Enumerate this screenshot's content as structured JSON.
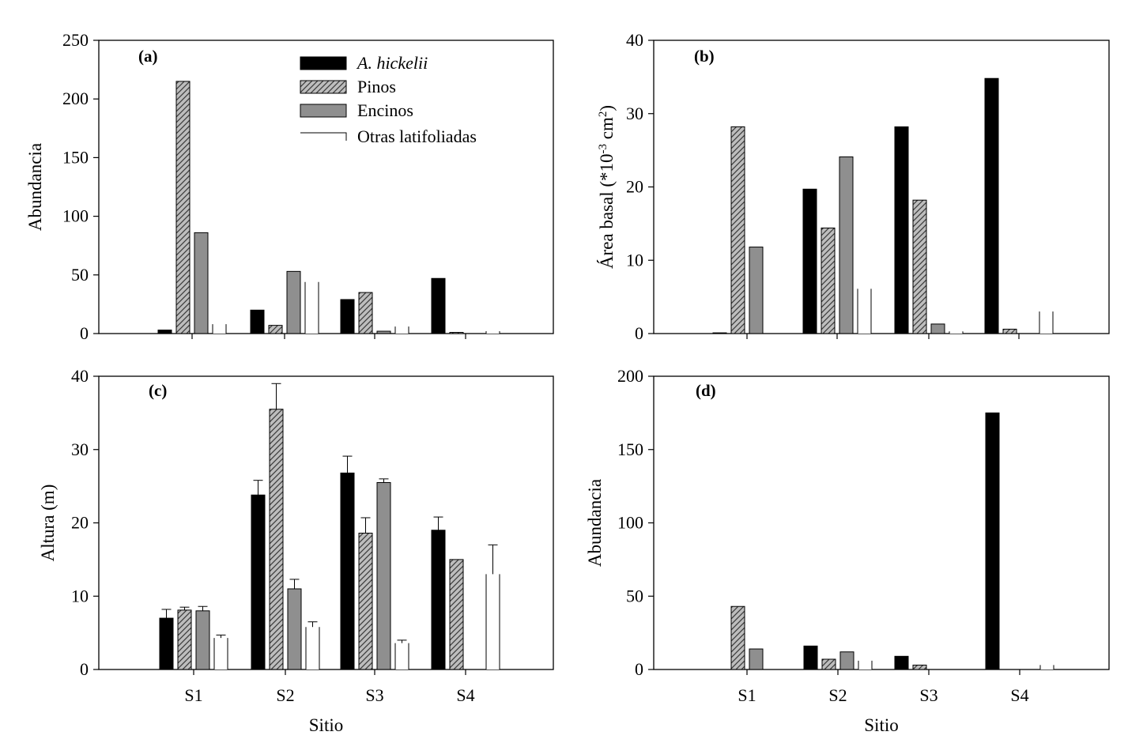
{
  "chart_data": [
    {
      "id": "a",
      "type": "bar",
      "panel_label": "(a)",
      "ylabel": "Abundancia",
      "xlabel": "",
      "ylim": [
        0,
        250
      ],
      "yticks": [
        0,
        50,
        100,
        150,
        200,
        250
      ],
      "categories": [
        "S1",
        "S2",
        "S3",
        "S4"
      ],
      "show_category_labels": false,
      "series": [
        {
          "name": "A. hickelii",
          "values": [
            3,
            20,
            29,
            47
          ]
        },
        {
          "name": "Pinos",
          "values": [
            215,
            7,
            35,
            1
          ]
        },
        {
          "name": "Encinos",
          "values": [
            86,
            53,
            2,
            0
          ]
        },
        {
          "name": "Otras latifoliadas",
          "values": [
            8,
            44,
            6,
            2
          ]
        }
      ]
    },
    {
      "id": "b",
      "type": "bar",
      "panel_label": "(b)",
      "ylabel": "Área basal (*10-3 cm2)",
      "ylabel_parts": [
        "Área basal (*10",
        "-3",
        " cm",
        "2",
        ")"
      ],
      "xlabel": "",
      "ylim": [
        0,
        40
      ],
      "yticks": [
        0,
        10,
        20,
        30,
        40
      ],
      "categories": [
        "S1",
        "S2",
        "S3",
        "S4"
      ],
      "show_category_labels": false,
      "series": [
        {
          "name": "A. hickelii",
          "values": [
            0.1,
            19.7,
            28.2,
            34.8
          ]
        },
        {
          "name": "Pinos",
          "values": [
            28.2,
            14.4,
            18.2,
            0.6
          ]
        },
        {
          "name": "Encinos",
          "values": [
            11.8,
            24.1,
            1.3,
            0
          ]
        },
        {
          "name": "Otras latifoliadas",
          "values": [
            0,
            6.1,
            0.3,
            3.0
          ]
        }
      ]
    },
    {
      "id": "c",
      "type": "bar",
      "panel_label": "(c)",
      "ylabel": "Altura (m)",
      "xlabel": "Sitio",
      "ylim": [
        0,
        40
      ],
      "yticks": [
        0,
        10,
        20,
        30,
        40
      ],
      "categories": [
        "S1",
        "S2",
        "S3",
        "S4"
      ],
      "show_category_labels": true,
      "series": [
        {
          "name": "A. hickelii",
          "values": [
            7.0,
            23.8,
            26.8,
            19.0
          ],
          "errors": [
            1.2,
            2.0,
            2.3,
            1.8
          ]
        },
        {
          "name": "Pinos",
          "values": [
            8.1,
            35.5,
            18.6,
            15.0
          ],
          "errors": [
            0.4,
            3.5,
            2.1,
            0
          ]
        },
        {
          "name": "Encinos",
          "values": [
            8.0,
            11.0,
            25.5,
            0
          ],
          "errors": [
            0.6,
            1.3,
            0.5,
            0
          ]
        },
        {
          "name": "Otras latifoliadas",
          "values": [
            4.3,
            5.8,
            3.6,
            13.0
          ],
          "errors": [
            0.4,
            0.7,
            0.4,
            4.0
          ]
        }
      ]
    },
    {
      "id": "d",
      "type": "bar",
      "panel_label": "(d)",
      "ylabel": "Abundancia",
      "xlabel": "Sitio",
      "ylim": [
        0,
        200
      ],
      "yticks": [
        0,
        50,
        100,
        150,
        200
      ],
      "categories": [
        "S1",
        "S2",
        "S3",
        "S4"
      ],
      "show_category_labels": true,
      "series": [
        {
          "name": "A. hickelii",
          "values": [
            0,
            16,
            9,
            175
          ]
        },
        {
          "name": "Pinos",
          "values": [
            43,
            7,
            3,
            0
          ]
        },
        {
          "name": "Encinos",
          "values": [
            14,
            12,
            0,
            0
          ]
        },
        {
          "name": "Otras latifoliadas",
          "values": [
            0,
            6,
            0,
            3
          ]
        }
      ]
    }
  ],
  "legend": {
    "items": [
      {
        "label": "A. hickelii",
        "italic": true
      },
      {
        "label": "Pinos",
        "italic": false
      },
      {
        "label": "Encinos",
        "italic": false
      },
      {
        "label": "Otras latifoliadas",
        "italic": false
      }
    ]
  },
  "colors": {
    "A. hickelii": "#000000",
    "Pinos": "#b8b8b8",
    "Encinos": "#8f8f8f",
    "Otras latifoliadas": "#ffffff",
    "axis": "#000000"
  }
}
